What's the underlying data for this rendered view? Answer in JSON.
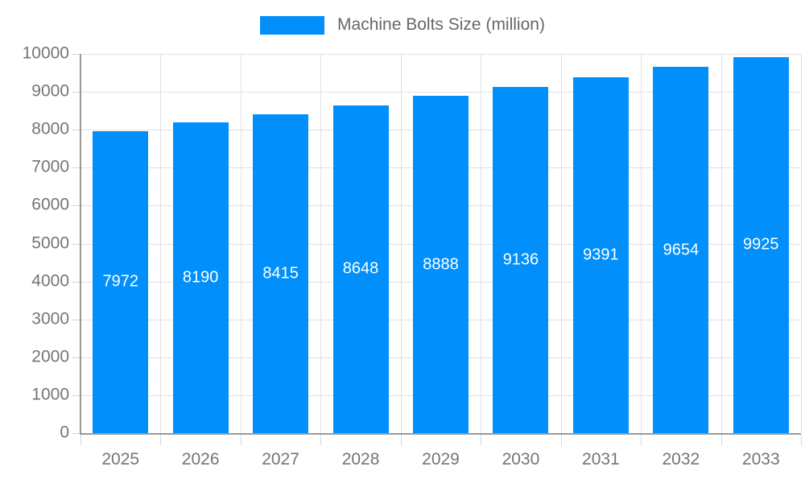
{
  "chart_data": {
    "type": "bar",
    "title": "Machine Bolts Size (million)",
    "categories": [
      "2025",
      "2026",
      "2027",
      "2028",
      "2029",
      "2030",
      "2031",
      "2032",
      "2033"
    ],
    "values": [
      7972,
      8190,
      8415,
      8648,
      8888,
      9136,
      9391,
      9654,
      9925
    ],
    "series": [
      {
        "name": "Machine Bolts Size (million)",
        "values": [
          7972,
          8190,
          8415,
          8648,
          8888,
          9136,
          9391,
          9654,
          9925
        ]
      }
    ],
    "xlabel": "",
    "ylabel": "",
    "ylim": [
      0,
      10000
    ],
    "ytick_step": 1000,
    "grid": true,
    "legend_position": "top-center",
    "bar_color": "#0190fb",
    "bar_label_color": "#ffffff",
    "axis_line_color": "#999999",
    "grid_color": "#e0e0e0",
    "axis_text_color": "#757575",
    "legend_text_color": "#666666"
  }
}
